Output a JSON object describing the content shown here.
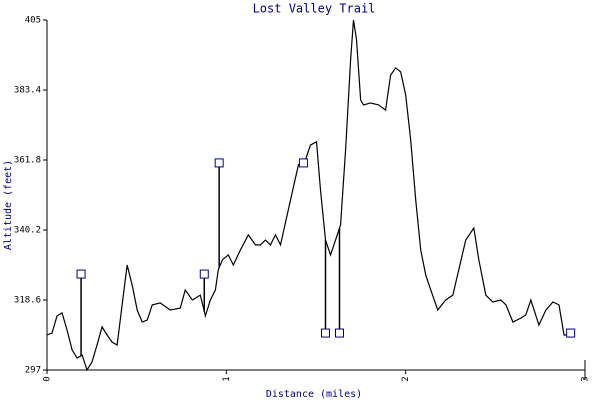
{
  "chart_data": {
    "type": "line",
    "title": "Lost Valley Trail",
    "xlabel": "Distance (miles)",
    "ylabel": "Altitude (feet)",
    "xlim": [
      0,
      3
    ],
    "xticks": [
      0,
      1,
      2,
      3
    ],
    "ylim": [
      297,
      405
    ],
    "yticks": [
      297,
      318.6,
      340.2,
      361.8,
      383.4,
      405
    ],
    "series": [
      {
        "type": "line",
        "color": "#000000",
        "x": [
          0.0,
          0.028,
          0.056,
          0.084,
          0.112,
          0.14,
          0.168,
          0.196,
          0.223,
          0.251,
          0.279,
          0.307,
          0.335,
          0.363,
          0.391,
          0.419,
          0.447,
          0.475,
          0.503,
          0.531,
          0.559,
          0.587,
          0.631,
          0.687,
          0.743,
          0.771,
          0.81,
          0.855,
          0.883,
          0.911,
          0.939,
          0.955,
          0.978,
          1.011,
          1.039,
          1.078,
          1.123,
          1.162,
          1.19,
          1.218,
          1.246,
          1.274,
          1.302,
          1.358,
          1.402,
          1.441,
          1.469,
          1.503,
          1.525,
          1.553,
          1.581,
          1.609,
          1.637,
          1.665,
          1.693,
          1.709,
          1.726,
          1.749,
          1.765,
          1.804,
          1.849,
          1.888,
          1.916,
          1.944,
          1.972,
          2.0,
          2.028,
          2.056,
          2.084,
          2.112,
          2.14,
          2.179,
          2.223,
          2.263,
          2.296,
          2.335,
          2.38,
          2.408,
          2.447,
          2.486,
          2.531,
          2.559,
          2.598,
          2.642,
          2.67,
          2.698,
          2.743,
          2.782,
          2.821,
          2.855,
          2.883,
          2.922
        ],
        "values": [
          307.8,
          308.4,
          313.7,
          314.6,
          309.3,
          303.2,
          300.7,
          301.6,
          297.0,
          299.5,
          304.7,
          310.3,
          307.8,
          305.6,
          304.7,
          317.1,
          329.4,
          323.2,
          315.5,
          311.8,
          312.4,
          317.1,
          317.7,
          315.5,
          316.1,
          321.7,
          318.6,
          320.1,
          313.7,
          318.6,
          321.7,
          327.9,
          331.0,
          332.5,
          329.4,
          334.0,
          338.7,
          335.6,
          335.6,
          337.1,
          335.6,
          338.7,
          335.6,
          349.5,
          360.3,
          361.8,
          366.4,
          367.4,
          352.6,
          337.1,
          332.5,
          337.1,
          341.8,
          364.9,
          392.7,
          405.0,
          398.9,
          380.3,
          378.8,
          379.4,
          378.8,
          377.2,
          388.0,
          390.2,
          389.0,
          381.9,
          368.0,
          349.5,
          334.0,
          326.3,
          321.7,
          315.5,
          318.6,
          320.1,
          327.9,
          337.1,
          340.8,
          331.0,
          320.1,
          318.0,
          318.6,
          317.1,
          311.8,
          313.0,
          314.0,
          318.6,
          310.9,
          315.5,
          318.0,
          317.1,
          307.8,
          307.8
        ]
      },
      {
        "type": "scatter",
        "color": "#000080",
        "x": [
          0.19,
          0.877,
          0.96,
          1.43,
          1.553,
          1.631,
          2.92
        ],
        "values": [
          326.6,
          326.6,
          360.9,
          360.9,
          308.4,
          308.4,
          308.4
        ]
      }
    ]
  }
}
